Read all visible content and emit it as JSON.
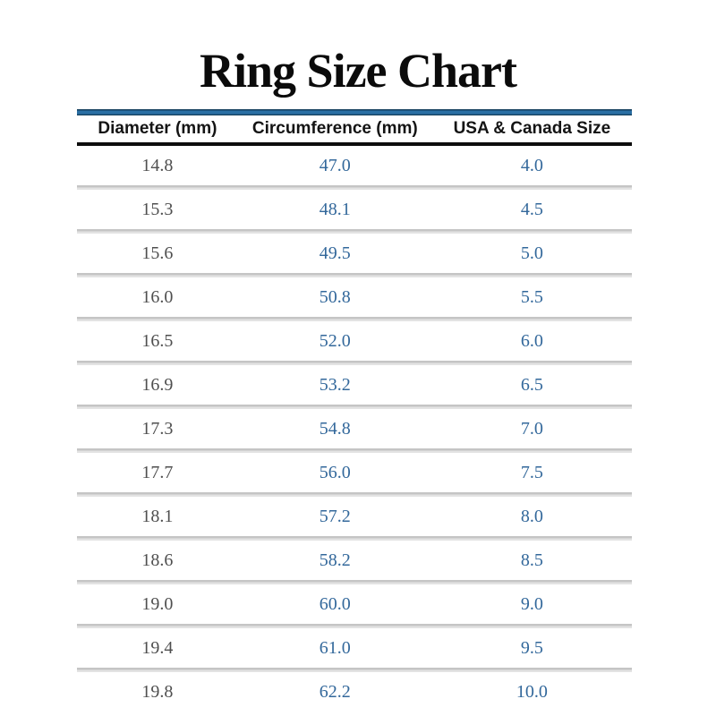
{
  "title": "Ring Size Chart",
  "table": {
    "columns": [
      "Diameter (mm)",
      "Circumference (mm)",
      "USA & Canada Size"
    ],
    "rows": [
      [
        "14.8",
        "47.0",
        "4.0"
      ],
      [
        "15.3",
        "48.1",
        "4.5"
      ],
      [
        "15.6",
        "49.5",
        "5.0"
      ],
      [
        "16.0",
        "50.8",
        "5.5"
      ],
      [
        "16.5",
        "52.0",
        "6.0"
      ],
      [
        "16.9",
        "53.2",
        "6.5"
      ],
      [
        "17.3",
        "54.8",
        "7.0"
      ],
      [
        "17.7",
        "56.0",
        "7.5"
      ],
      [
        "18.1",
        "57.2",
        "8.0"
      ],
      [
        "18.6",
        "58.2",
        "8.5"
      ],
      [
        "19.0",
        "60.0",
        "9.0"
      ],
      [
        "19.4",
        "61.0",
        "9.5"
      ],
      [
        "19.8",
        "62.2",
        "10.0"
      ]
    ]
  },
  "colors": {
    "title_underline_blue": "#2a6fa4",
    "value_text_blue": "#33689b",
    "diameter_text_gray": "#4f4f4f",
    "header_text_black": "#141414",
    "header_underline_black": "#0d0d0d",
    "row_divider_dark_gray": "#c5c5c5",
    "row_divider_light_gray": "#e3e3e3"
  },
  "chart_data": {
    "type": "table",
    "title": "Ring Size Chart",
    "columns": [
      "Diameter (mm)",
      "Circumference (mm)",
      "USA & Canada Size"
    ],
    "rows": [
      [
        14.8,
        47.0,
        4.0
      ],
      [
        15.3,
        48.1,
        4.5
      ],
      [
        15.6,
        49.5,
        5.0
      ],
      [
        16.0,
        50.8,
        5.5
      ],
      [
        16.5,
        52.0,
        6.0
      ],
      [
        16.9,
        53.2,
        6.5
      ],
      [
        17.3,
        54.8,
        7.0
      ],
      [
        17.7,
        56.0,
        7.5
      ],
      [
        18.1,
        57.2,
        8.0
      ],
      [
        18.6,
        58.2,
        8.5
      ],
      [
        19.0,
        60.0,
        9.0
      ],
      [
        19.4,
        61.0,
        9.5
      ],
      [
        19.8,
        62.2,
        10.0
      ]
    ]
  }
}
